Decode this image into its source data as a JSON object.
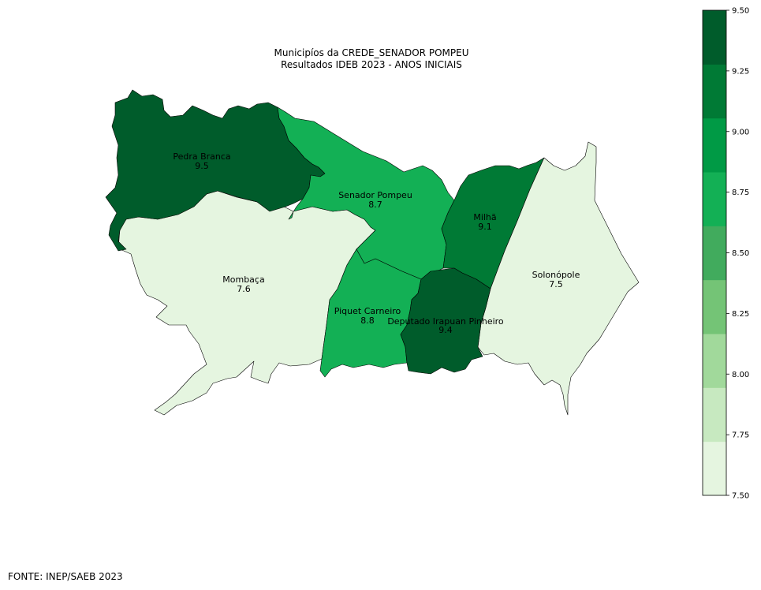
{
  "title_line1": "Municipíos da CREDE_SENADOR POMPEU",
  "title_line2": "Resultados IDEB 2023 - ANOS INICIAIS",
  "source": "FONTE: INEP/SAEB 2023",
  "municipalities": [
    {
      "name": "Pedra Branca",
      "value": "9.5"
    },
    {
      "name": "Senador Pompeu",
      "value": "8.7"
    },
    {
      "name": "Milhã",
      "value": "9.1"
    },
    {
      "name": "Solonópole",
      "value": "7.5"
    },
    {
      "name": "Mombaça",
      "value": "7.6"
    },
    {
      "name": "Piquet Carneiro",
      "value": "8.8"
    },
    {
      "name": "Deputado Irapuan Pinheiro",
      "value": "9.4"
    }
  ],
  "colorbar": {
    "min": 7.5,
    "max": 9.5,
    "ticks": [
      "7.50",
      "7.75",
      "8.00",
      "8.25",
      "8.50",
      "8.75",
      "9.00",
      "9.25",
      "9.50"
    ],
    "colors": [
      "#e5f5e0",
      "#c7e9c0",
      "#a1d99b",
      "#74c476",
      "#41ab5d",
      "#13b055",
      "#009a45",
      "#007a35",
      "#005c2b"
    ]
  },
  "fills": {
    "Pedra Branca": "#005c2b",
    "Senador Pompeu": "#13b055",
    "Milhã": "#007a35",
    "Solonópole": "#e5f5e0",
    "Mombaça": "#e5f5e0",
    "Piquet Carneiro": "#13b055",
    "Deputado Irapuan Pinheiro": "#005c2b"
  }
}
